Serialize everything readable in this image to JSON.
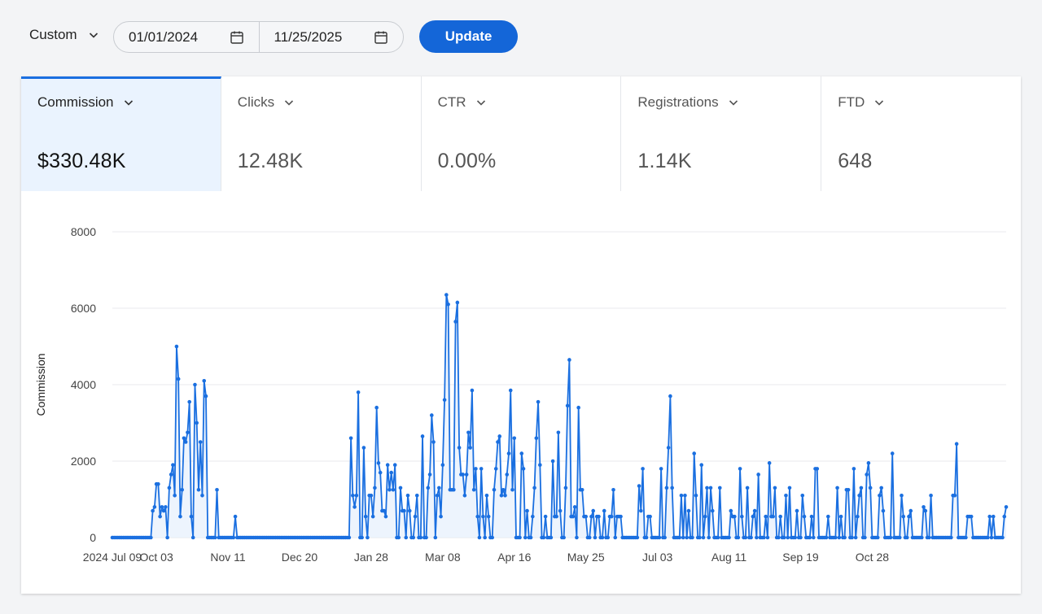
{
  "range": {
    "label": "Custom",
    "start": "01/01/2024",
    "end": "11/25/2025"
  },
  "update_label": "Update",
  "kpis": [
    {
      "label": "Commission",
      "value": "$330.48K",
      "active": true
    },
    {
      "label": "Clicks",
      "value": "12.48K",
      "active": false
    },
    {
      "label": "CTR",
      "value": "0.00%",
      "active": false
    },
    {
      "label": "Registrations",
      "value": "1.14K",
      "active": false
    },
    {
      "label": "FTD",
      "value": "648",
      "active": false
    }
  ],
  "colors": {
    "accent": "#1466d8",
    "line": "#1a6fe0",
    "fill": "#e9f1fc",
    "active_tab": "#eaf3fe"
  },
  "chart_data": {
    "type": "line",
    "ylabel": "Commission",
    "xlabel": "",
    "ylim": [
      0,
      8000
    ],
    "yticks": [
      0,
      2000,
      4000,
      6000,
      8000
    ],
    "x_tick_labels": [
      "2024 Jul 09",
      "Oct 03",
      "Nov 11",
      "Dec 20",
      "Jan 28",
      "Mar 08",
      "Apr 16",
      "May 25",
      "Jul 03",
      "Aug 11",
      "Sep 19",
      "Oct 28"
    ],
    "x_tick_index": [
      0,
      24,
      63,
      102,
      141,
      180,
      219,
      258,
      297,
      336,
      375,
      414
    ],
    "grid": true,
    "series": [
      {
        "values": [
          0,
          0,
          0,
          0,
          0,
          0,
          0,
          0,
          0,
          0,
          0,
          0,
          0,
          0,
          0,
          0,
          0,
          0,
          0,
          0,
          0,
          0,
          700,
          800,
          1400,
          1400,
          550,
          800,
          700,
          800,
          0,
          1300,
          1650,
          1900,
          1100,
          5000,
          4150,
          550,
          1250,
          2600,
          2500,
          2750,
          3550,
          550,
          0,
          4000,
          3000,
          1250,
          2500,
          1100,
          4100,
          3700,
          0,
          0,
          0,
          0,
          0,
          1250,
          0,
          0,
          0,
          0,
          0,
          0,
          0,
          0,
          0,
          550,
          0,
          0,
          0,
          0,
          0,
          0,
          0,
          0,
          0,
          0,
          0,
          0,
          0,
          0,
          0,
          0,
          0,
          0,
          0,
          0,
          0,
          0,
          0,
          0,
          0,
          0,
          0,
          0,
          0,
          0,
          0,
          0,
          0,
          0,
          0,
          0,
          0,
          0,
          0,
          0,
          0,
          0,
          0,
          0,
          0,
          0,
          0,
          0,
          0,
          0,
          0,
          0,
          0,
          0,
          0,
          0,
          0,
          0,
          0,
          0,
          0,
          0,
          2600,
          1100,
          800,
          1100,
          3800,
          0,
          0,
          2350,
          550,
          0,
          1100,
          1100,
          550,
          1300,
          3400,
          1950,
          1700,
          700,
          700,
          550,
          1900,
          1250,
          1700,
          1250,
          1900,
          0,
          0,
          1300,
          700,
          700,
          0,
          1100,
          700,
          0,
          0,
          550,
          1100,
          0,
          0,
          2650,
          0,
          0,
          1300,
          1650,
          3200,
          2500,
          0,
          1100,
          1300,
          550,
          1900,
          3600,
          6350,
          6100,
          1250,
          1250,
          1250,
          5650,
          6150,
          2350,
          1650,
          1650,
          1100,
          1650,
          2750,
          2350,
          3850,
          1250,
          1800,
          550,
          0,
          1800,
          550,
          0,
          1100,
          550,
          0,
          0,
          1250,
          1800,
          2500,
          2650,
          1100,
          1250,
          1100,
          1650,
          2200,
          3850,
          1250,
          2600,
          0,
          0,
          0,
          2200,
          1800,
          0,
          700,
          0,
          0,
          550,
          1300,
          2600,
          3550,
          1900,
          0,
          0,
          550,
          0,
          0,
          0,
          2000,
          550,
          550,
          2750,
          700,
          0,
          0,
          1300,
          3450,
          4650,
          550,
          550,
          800,
          0,
          3400,
          1250,
          1250,
          550,
          550,
          0,
          0,
          550,
          700,
          0,
          550,
          550,
          0,
          0,
          700,
          0,
          0,
          550,
          550,
          1250,
          0,
          550,
          550,
          550,
          0,
          0,
          0,
          0,
          0,
          0,
          0,
          0,
          0,
          1350,
          700,
          1800,
          0,
          0,
          550,
          550,
          0,
          0,
          0,
          0,
          0,
          1800,
          0,
          0,
          1300,
          2350,
          3700,
          1300,
          0,
          0,
          0,
          0,
          1100,
          0,
          1100,
          0,
          700,
          0,
          0,
          2200,
          1100,
          0,
          0,
          1900,
          0,
          550,
          1300,
          0,
          1300,
          700,
          0,
          0,
          0,
          1300,
          0,
          0,
          0,
          0,
          0,
          700,
          550,
          550,
          0,
          0,
          1800,
          550,
          0,
          0,
          1300,
          0,
          0,
          550,
          700,
          0,
          1650,
          0,
          0,
          0,
          550,
          0,
          1950,
          550,
          550,
          1300,
          0,
          0,
          550,
          0,
          0,
          1100,
          0,
          1300,
          0,
          0,
          0,
          700,
          0,
          0,
          1100,
          550,
          0,
          0,
          0,
          550,
          0,
          1800,
          1800,
          0,
          0,
          0,
          0,
          0,
          550,
          0,
          0,
          0,
          0,
          1300,
          0,
          550,
          0,
          0,
          1250,
          1250,
          0,
          0,
          1800,
          0,
          550,
          1100,
          1300,
          0,
          0,
          1650,
          1950,
          1300,
          0,
          0,
          0,
          0,
          1100,
          1300,
          700,
          0,
          0,
          0,
          0,
          2200,
          0,
          0,
          0,
          0,
          1100,
          550,
          0,
          0,
          550,
          700,
          0,
          0,
          0,
          0,
          0,
          0,
          800,
          700,
          0,
          0,
          1100,
          0,
          0,
          0,
          0,
          0,
          0,
          0,
          0,
          0,
          0,
          0,
          1100,
          1100,
          2450,
          0,
          0,
          0,
          0,
          0,
          550,
          550,
          550,
          0,
          0,
          0,
          0,
          0,
          0,
          0,
          0,
          0,
          550,
          0,
          550,
          0,
          0,
          0,
          0,
          0,
          550,
          800
        ]
      }
    ]
  }
}
